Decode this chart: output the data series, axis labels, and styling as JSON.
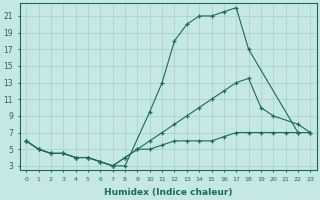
{
  "xlabel": "Humidex (Indice chaleur)",
  "bg_color": "#c5e8e2",
  "grid_color": "#a8cfc8",
  "line_color": "#1a6b5a",
  "xlim": [
    -0.5,
    23.5
  ],
  "ylim": [
    2.5,
    22.5
  ],
  "xticks": [
    0,
    1,
    2,
    3,
    4,
    5,
    6,
    7,
    8,
    9,
    10,
    11,
    12,
    13,
    14,
    15,
    16,
    17,
    18,
    19,
    20,
    21,
    22,
    23
  ],
  "yticks": [
    3,
    5,
    7,
    9,
    11,
    13,
    15,
    17,
    19,
    21
  ],
  "series": [
    {
      "x": [
        0,
        1,
        2,
        3,
        4,
        5,
        6,
        7,
        8,
        10,
        11,
        12,
        13,
        14,
        15,
        16,
        17,
        18,
        22
      ],
      "y": [
        6,
        5,
        4.5,
        4.5,
        4,
        4,
        3.5,
        3,
        3,
        9.5,
        13,
        18,
        20,
        21,
        21,
        21.5,
        22,
        17,
        7
      ]
    },
    {
      "x": [
        0,
        1,
        2,
        3,
        4,
        5,
        6,
        7,
        8,
        9,
        10,
        11,
        12,
        13,
        14,
        15,
        16,
        17,
        18,
        19,
        20,
        22,
        23
      ],
      "y": [
        6,
        5,
        4.5,
        4.5,
        4,
        4,
        3.5,
        3,
        4,
        5,
        6,
        7,
        8,
        9,
        10,
        11,
        12,
        13,
        13.5,
        10,
        9,
        8,
        7
      ]
    },
    {
      "x": [
        0,
        1,
        2,
        3,
        4,
        5,
        6,
        7,
        8,
        9,
        10,
        11,
        12,
        13,
        14,
        15,
        16,
        17,
        18,
        19,
        20,
        21,
        22,
        23
      ],
      "y": [
        6,
        5,
        4.5,
        4.5,
        4,
        4,
        3.5,
        3,
        4,
        5,
        5,
        5.5,
        6,
        6,
        6,
        6,
        6.5,
        7,
        7,
        7,
        7,
        7,
        7,
        7
      ]
    }
  ]
}
